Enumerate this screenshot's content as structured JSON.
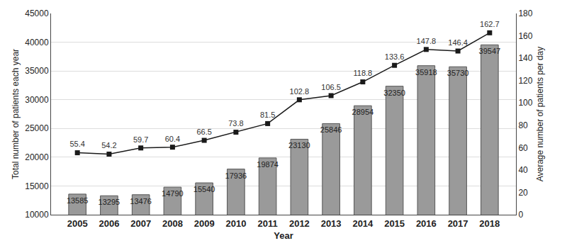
{
  "chart_data": {
    "type": "bar",
    "x_label": "Year",
    "y_label": "Total number of patients each year",
    "y2_label": "Average number of patients per day",
    "categories": [
      "2005",
      "2006",
      "2007",
      "2008",
      "2009",
      "2010",
      "2011",
      "2012",
      "2013",
      "2014",
      "2015",
      "2016",
      "2017",
      "2018"
    ],
    "series": [
      {
        "type": "bar",
        "color": "#9a9a9a",
        "values": [
          13585,
          13295,
          13476,
          14790,
          15540,
          17936,
          19874,
          23130,
          25846,
          28954,
          32350,
          35918,
          35730,
          39547
        ]
      },
      {
        "type": "line",
        "axis": "y2",
        "color": "#1a1a1a",
        "marker": "square",
        "line_style": "solid",
        "values": [
          55.4,
          54.2,
          59.7,
          60.4,
          66.5,
          73.8,
          81.5,
          102.8,
          106.5,
          118.8,
          133.6,
          147.8,
          146.4,
          162.7
        ]
      }
    ],
    "ylim": [
      10000,
      45000
    ],
    "yticks": [
      10000,
      15000,
      20000,
      25000,
      30000,
      35000,
      40000,
      45000
    ],
    "y2lim": [
      0,
      180
    ],
    "y2ticks": [
      0,
      20,
      40,
      60,
      80,
      100,
      120,
      140,
      160,
      180
    ],
    "grid": true,
    "data_labels": true
  }
}
